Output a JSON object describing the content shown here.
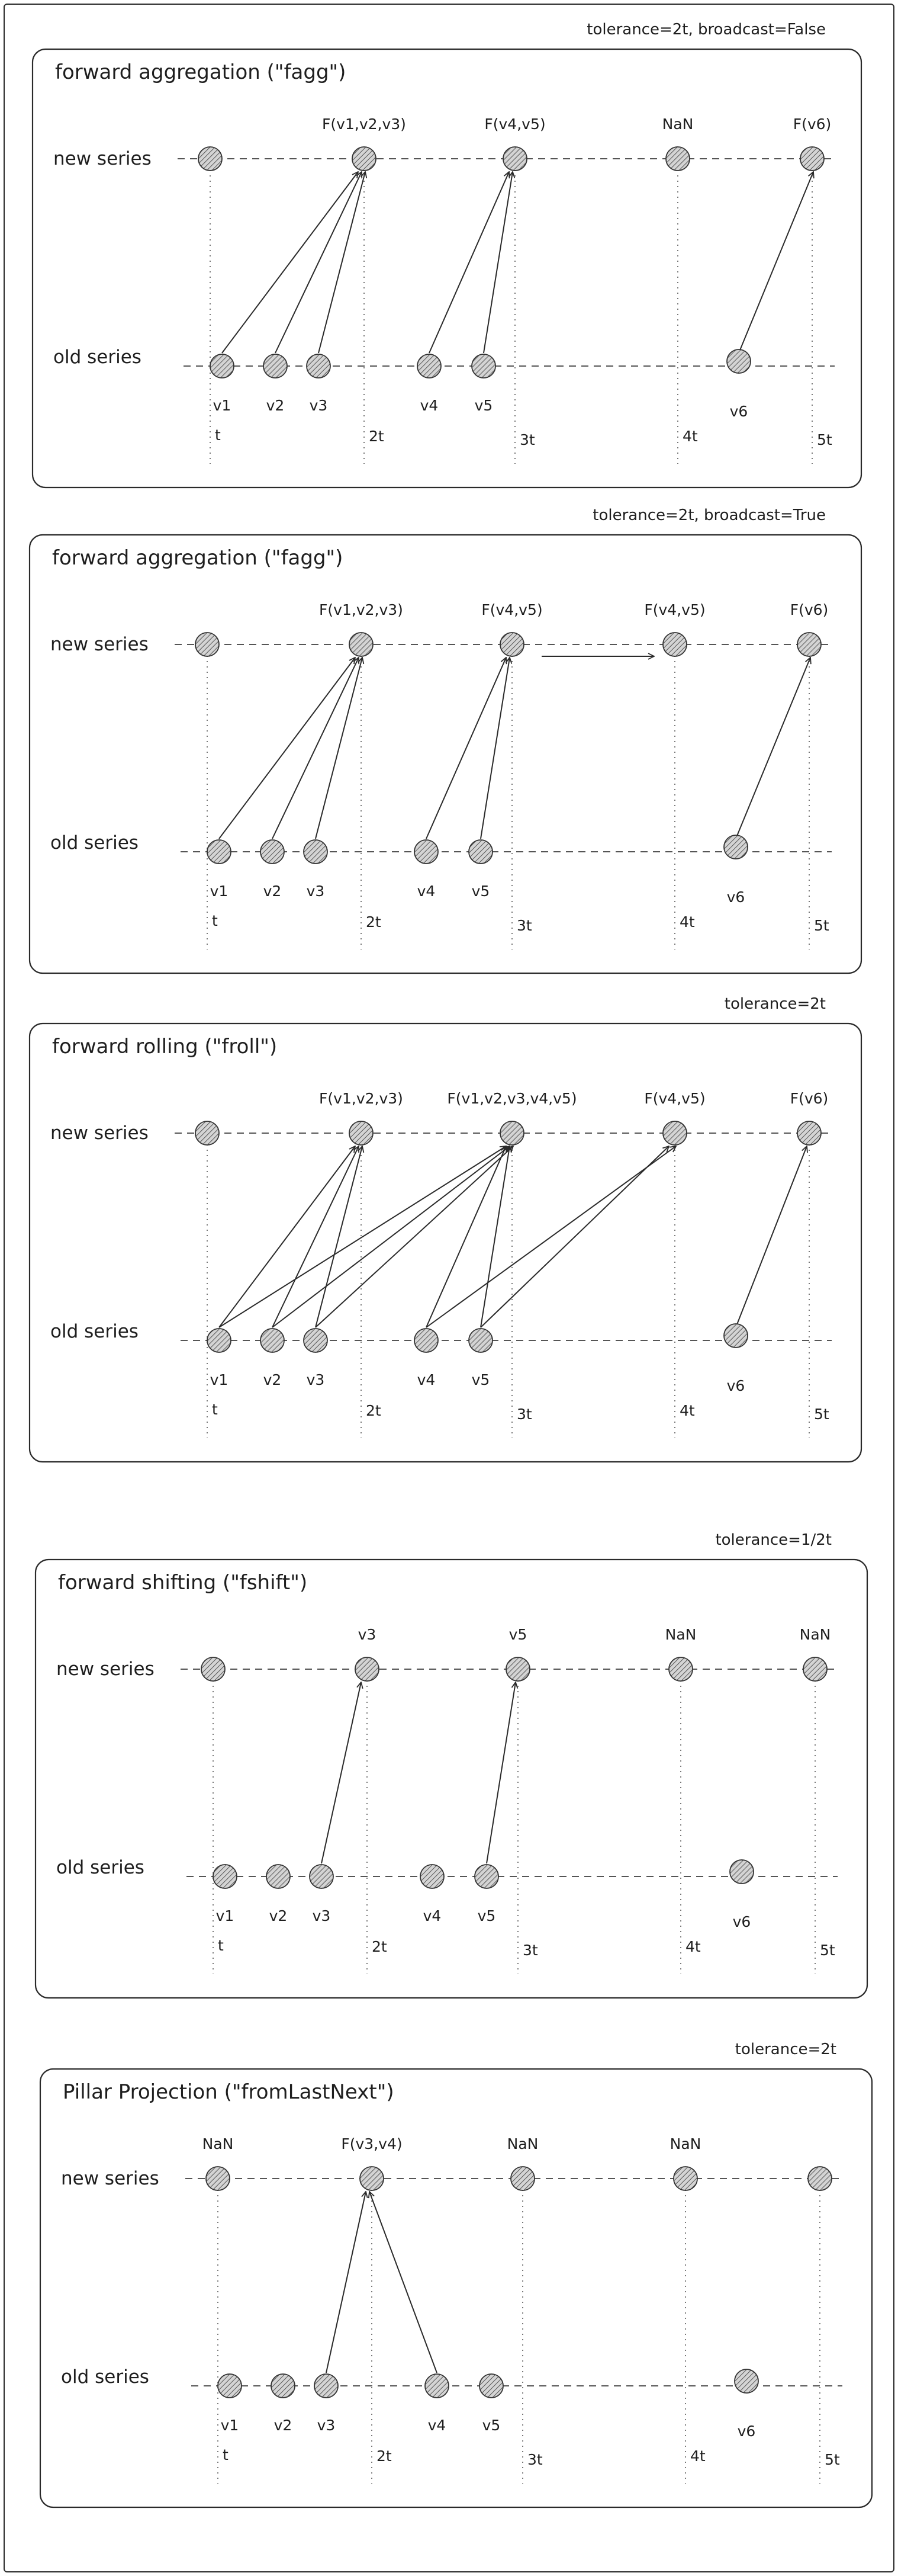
{
  "panels": [
    {
      "id": "fagg-no-broadcast",
      "tolerance": "tolerance=2t, broadcast=False",
      "title": "forward aggregation (\"fagg\")",
      "new_label": "new series",
      "old_label": "old series",
      "new_nodes": [
        {
          "col": "t",
          "label": ""
        },
        {
          "col": "2t",
          "label": "F(v1,v2,v3)"
        },
        {
          "col": "3t",
          "label": "F(v4,v5)"
        },
        {
          "col": "4t",
          "label": "NaN"
        },
        {
          "col": "5t",
          "label": "F(v6)"
        }
      ],
      "old_nodes": [
        "v1",
        "v2",
        "v3",
        "v4",
        "v5",
        "v6"
      ],
      "arrows": [
        [
          "v1",
          "2t"
        ],
        [
          "v2",
          "2t"
        ],
        [
          "v3",
          "2t"
        ],
        [
          "v4",
          "3t"
        ],
        [
          "v5",
          "3t"
        ],
        [
          "v6",
          "5t"
        ]
      ],
      "broadcast_arrow": false
    },
    {
      "id": "fagg-broadcast",
      "tolerance": "tolerance=2t, broadcast=True",
      "title": "forward aggregation (\"fagg\")",
      "new_label": "new series",
      "old_label": "old series",
      "new_nodes": [
        {
          "col": "t",
          "label": ""
        },
        {
          "col": "2t",
          "label": "F(v1,v2,v3)"
        },
        {
          "col": "3t",
          "label": "F(v4,v5)"
        },
        {
          "col": "4t",
          "label": "F(v4,v5)"
        },
        {
          "col": "5t",
          "label": "F(v6)"
        }
      ],
      "old_nodes": [
        "v1",
        "v2",
        "v3",
        "v4",
        "v5",
        "v6"
      ],
      "arrows": [
        [
          "v1",
          "2t"
        ],
        [
          "v2",
          "2t"
        ],
        [
          "v3",
          "2t"
        ],
        [
          "v4",
          "3t"
        ],
        [
          "v5",
          "3t"
        ],
        [
          "v6",
          "5t"
        ]
      ],
      "broadcast_arrow": true
    },
    {
      "id": "froll",
      "tolerance": "tolerance=2t",
      "title": "forward rolling (\"froll\")",
      "new_label": "new series",
      "old_label": "old series",
      "new_nodes": [
        {
          "col": "t",
          "label": ""
        },
        {
          "col": "2t",
          "label": "F(v1,v2,v3)"
        },
        {
          "col": "3t",
          "label": "F(v1,v2,v3,v4,v5)"
        },
        {
          "col": "4t",
          "label": "F(v4,v5)"
        },
        {
          "col": "5t",
          "label": "F(v6)"
        }
      ],
      "old_nodes": [
        "v1",
        "v2",
        "v3",
        "v4",
        "v5",
        "v6"
      ],
      "arrows": [
        [
          "v1",
          "2t"
        ],
        [
          "v2",
          "2t"
        ],
        [
          "v3",
          "2t"
        ],
        [
          "v1",
          "3t"
        ],
        [
          "v2",
          "3t"
        ],
        [
          "v3",
          "3t"
        ],
        [
          "v4",
          "3t"
        ],
        [
          "v5",
          "3t"
        ],
        [
          "v4",
          "4t"
        ],
        [
          "v5",
          "4t"
        ],
        [
          "v6",
          "5t"
        ]
      ],
      "broadcast_arrow": false
    },
    {
      "id": "fshift",
      "tolerance": "tolerance=1/2t",
      "title": "forward shifting (\"fshift\")",
      "new_label": "new series",
      "old_label": "old series",
      "new_nodes": [
        {
          "col": "t",
          "label": ""
        },
        {
          "col": "2t",
          "label": "v3"
        },
        {
          "col": "3t",
          "label": "v5"
        },
        {
          "col": "4t",
          "label": "NaN"
        },
        {
          "col": "5t",
          "label": "NaN"
        }
      ],
      "old_nodes": [
        "v1",
        "v2",
        "v3",
        "v4",
        "v5",
        "v6"
      ],
      "arrows": [
        [
          "v3",
          "2t"
        ],
        [
          "v5",
          "3t"
        ]
      ],
      "broadcast_arrow": false
    },
    {
      "id": "from-last-next",
      "tolerance": "tolerance=2t",
      "title": "Pillar Projection (\"fromLastNext\")",
      "new_label": "new series",
      "old_label": "old series",
      "new_nodes": [
        {
          "col": "t",
          "label": "NaN"
        },
        {
          "col": "2t",
          "label": "F(v3,v4)"
        },
        {
          "col": "3t",
          "label": "NaN"
        },
        {
          "col": "4t",
          "label": "NaN"
        },
        {
          "col": "5t",
          "label": ""
        }
      ],
      "old_nodes": [
        "v1",
        "v2",
        "v3",
        "v4",
        "v5",
        "v6"
      ],
      "arrows": [
        [
          "v3",
          "2t"
        ],
        [
          "v4",
          "2t"
        ]
      ],
      "broadcast_arrow": false
    }
  ],
  "time_labels": [
    "t",
    "2t",
    "3t",
    "4t",
    "5t"
  ]
}
